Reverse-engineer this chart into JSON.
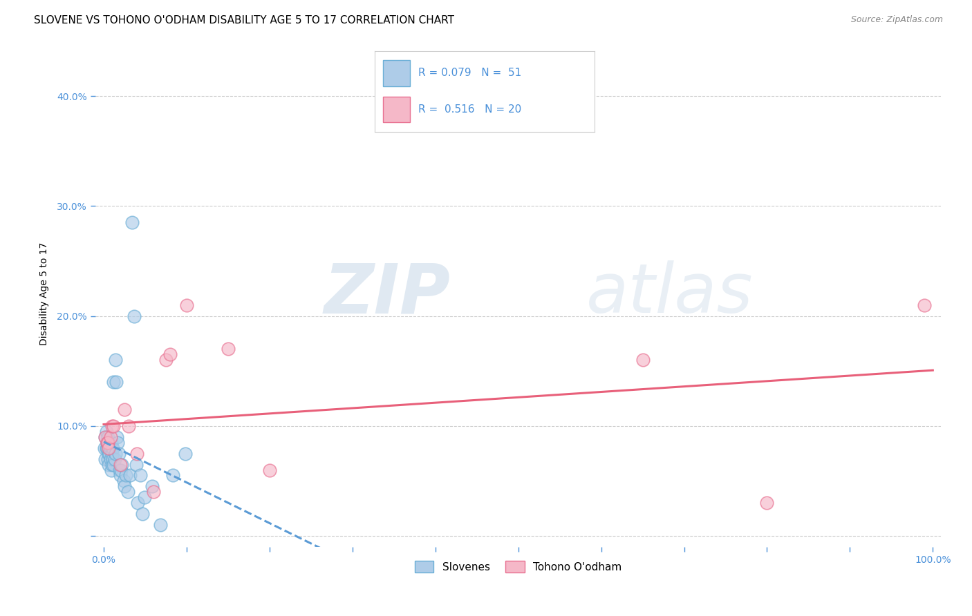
{
  "title": "SLOVENE VS TOHONO O'ODHAM DISABILITY AGE 5 TO 17 CORRELATION CHART",
  "source": "Source: ZipAtlas.com",
  "xlabel": "",
  "ylabel": "Disability Age 5 to 17",
  "xlim": [
    -0.01,
    1.01
  ],
  "ylim": [
    -0.01,
    0.45
  ],
  "xticks": [
    0.0,
    0.1,
    0.2,
    0.3,
    0.4,
    0.5,
    0.6,
    0.7,
    0.8,
    0.9,
    1.0
  ],
  "xticklabels": [
    "0.0%",
    "",
    "",
    "",
    "",
    "",
    "",
    "",
    "",
    "",
    "100.0%"
  ],
  "yticks": [
    0.0,
    0.1,
    0.2,
    0.3,
    0.4
  ],
  "yticklabels": [
    "",
    "10.0%",
    "20.0%",
    "30.0%",
    "40.0%"
  ],
  "watermark_zip": "ZIP",
  "watermark_atlas": "atlas",
  "slovene_color": "#aecce8",
  "tohono_color": "#f5b8c8",
  "slovene_edge_color": "#6aaed6",
  "tohono_edge_color": "#e87090",
  "slovene_line_color": "#5b9bd5",
  "tohono_line_color": "#e8607a",
  "legend_R_slovene": "0.079",
  "legend_N_slovene": "51",
  "legend_R_tohono": "0.516",
  "legend_N_tohono": "20",
  "slovene_x": [
    0.001,
    0.002,
    0.002,
    0.003,
    0.003,
    0.004,
    0.004,
    0.005,
    0.005,
    0.006,
    0.006,
    0.006,
    0.007,
    0.007,
    0.008,
    0.008,
    0.009,
    0.009,
    0.01,
    0.01,
    0.011,
    0.011,
    0.012,
    0.012,
    0.013,
    0.014,
    0.014,
    0.015,
    0.016,
    0.017,
    0.018,
    0.019,
    0.02,
    0.021,
    0.022,
    0.024,
    0.025,
    0.027,
    0.029,
    0.032,
    0.034,
    0.037,
    0.039,
    0.041,
    0.044,
    0.047,
    0.049,
    0.058,
    0.068,
    0.083,
    0.098
  ],
  "slovene_y": [
    0.08,
    0.09,
    0.07,
    0.08,
    0.095,
    0.08,
    0.085,
    0.09,
    0.07,
    0.075,
    0.085,
    0.065,
    0.075,
    0.08,
    0.08,
    0.07,
    0.085,
    0.06,
    0.075,
    0.065,
    0.08,
    0.07,
    0.14,
    0.065,
    0.07,
    0.16,
    0.075,
    0.14,
    0.09,
    0.085,
    0.075,
    0.06,
    0.055,
    0.06,
    0.065,
    0.05,
    0.045,
    0.055,
    0.04,
    0.055,
    0.285,
    0.2,
    0.065,
    0.03,
    0.055,
    0.02,
    0.035,
    0.045,
    0.01,
    0.055,
    0.075
  ],
  "tohono_x": [
    0.002,
    0.004,
    0.005,
    0.006,
    0.008,
    0.01,
    0.012,
    0.02,
    0.025,
    0.03,
    0.04,
    0.06,
    0.075,
    0.08,
    0.1,
    0.15,
    0.2,
    0.65,
    0.8,
    0.99
  ],
  "tohono_y": [
    0.09,
    0.085,
    0.085,
    0.08,
    0.09,
    0.1,
    0.1,
    0.065,
    0.115,
    0.1,
    0.075,
    0.04,
    0.16,
    0.165,
    0.21,
    0.17,
    0.06,
    0.16,
    0.03,
    0.21
  ],
  "background_color": "#ffffff",
  "grid_color": "#cccccc",
  "title_fontsize": 11,
  "axis_label_fontsize": 10,
  "tick_fontsize": 10,
  "scatter_size": 180,
  "scatter_alpha": 0.65
}
